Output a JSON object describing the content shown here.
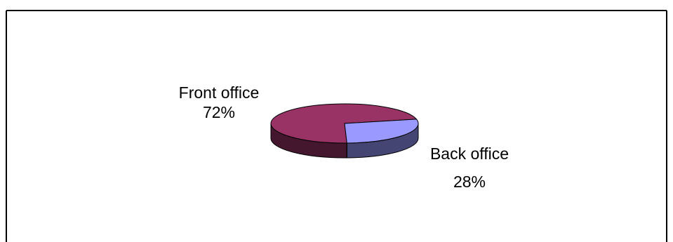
{
  "chart_data": {
    "type": "pie",
    "style": "3d",
    "title": "",
    "slices": [
      {
        "label": "Front office",
        "value_label": "72%",
        "value": 72,
        "color": "#993366"
      },
      {
        "label": "Back office",
        "value_label": "28%",
        "value": 28,
        "color": "#9999ff"
      }
    ],
    "legend": "none",
    "labels_placement": "outside"
  }
}
